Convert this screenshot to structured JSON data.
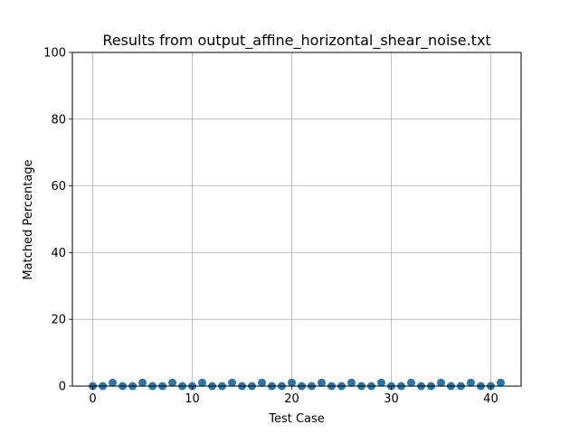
{
  "chart_data": {
    "type": "scatter",
    "title": "Results from output_affine_horizontal_shear_noise.txt",
    "xlabel": "Test Case",
    "ylabel": "Matched Percentage",
    "xlim": [
      -2.05,
      43.05
    ],
    "ylim": [
      0,
      100
    ],
    "xticks": [
      0,
      10,
      20,
      30,
      40
    ],
    "yticks": [
      0,
      20,
      40,
      60,
      80,
      100
    ],
    "grid": true,
    "marker_color": "#1f77b4",
    "x": [
      0,
      1,
      2,
      3,
      4,
      5,
      6,
      7,
      8,
      9,
      10,
      11,
      12,
      13,
      14,
      15,
      16,
      17,
      18,
      19,
      20,
      21,
      22,
      23,
      24,
      25,
      26,
      27,
      28,
      29,
      30,
      31,
      32,
      33,
      34,
      35,
      36,
      37,
      38,
      39,
      40,
      41
    ],
    "y": [
      0,
      0,
      1,
      0,
      0,
      1,
      0,
      0,
      1,
      0,
      0,
      1,
      0,
      0,
      1,
      0,
      0,
      1,
      0,
      0,
      1,
      0,
      0,
      1,
      0,
      0,
      1,
      0,
      0,
      1,
      0,
      0,
      1,
      0,
      0,
      1,
      0,
      0,
      1,
      0,
      0,
      1
    ]
  }
}
